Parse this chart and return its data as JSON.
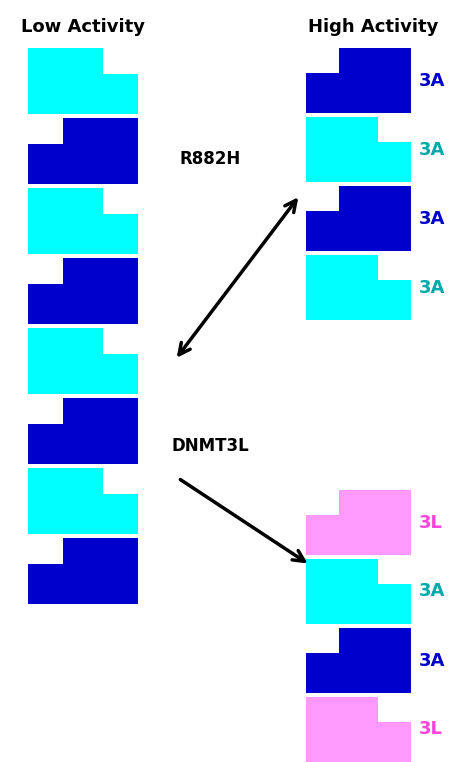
{
  "title_left": "Low Activity",
  "title_right": "High Activity",
  "title_fontsize": 13,
  "dark_blue": "#0000CC",
  "cyan": "#00FFFF",
  "pink": "#FF99FF",
  "bg_color": "#FFFFFF",
  "left_blocks": [
    {
      "color": "#0000CC",
      "step": "right"
    },
    {
      "color": "#00FFFF",
      "step": "left"
    },
    {
      "color": "#0000CC",
      "step": "right"
    },
    {
      "color": "#00FFFF",
      "step": "left"
    },
    {
      "color": "#0000CC",
      "step": "right"
    },
    {
      "color": "#00FFFF",
      "step": "left"
    },
    {
      "color": "#0000CC",
      "step": "right"
    },
    {
      "color": "#00FFFF",
      "step": "left"
    }
  ],
  "right_top_blocks": [
    {
      "color": "#0000CC",
      "step": "right",
      "label": "3A",
      "label_color": "#0000CC"
    },
    {
      "color": "#00FFFF",
      "step": "left",
      "label": "3A",
      "label_color": "#00AAAA"
    },
    {
      "color": "#0000CC",
      "step": "right",
      "label": "3A",
      "label_color": "#0000CC"
    },
    {
      "color": "#00FFFF",
      "step": "left",
      "label": "3A",
      "label_color": "#00AAAA"
    }
  ],
  "right_bot_blocks": [
    {
      "color": "#FF99FF",
      "step": "right",
      "label": "3L",
      "label_color": "#FF44DD"
    },
    {
      "color": "#00FFFF",
      "step": "left",
      "label": "3A",
      "label_color": "#00AAAA"
    },
    {
      "color": "#0000CC",
      "step": "right",
      "label": "3A",
      "label_color": "#0000CC"
    },
    {
      "color": "#FF99FF",
      "step": "left",
      "label": "3L",
      "label_color": "#FF44DD"
    }
  ],
  "arrow_r882h_label": "R882H",
  "arrow_dnmt3l_label": "DNMT3L"
}
